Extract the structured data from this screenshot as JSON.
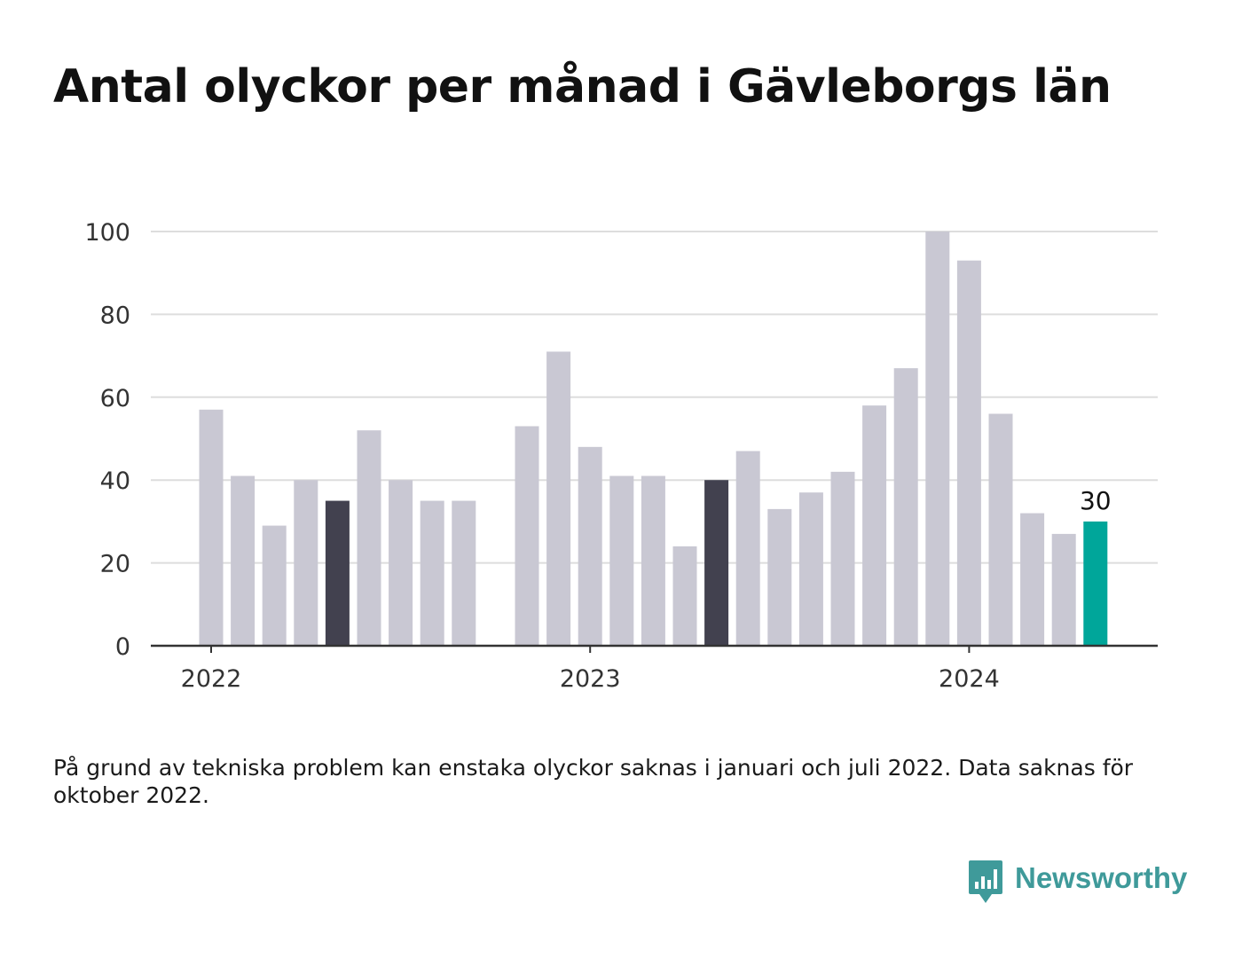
{
  "title": "Antal olyckor per månad i Gävleborgs län",
  "note": "På grund av tekniska problem kan enstaka olyckor saknas i januari och juli 2022. Data saknas för oktober 2022.",
  "brand": {
    "name": "Newsworthy",
    "color": "#3f9a9a",
    "icon": "bar-chart-speech-bubble-icon"
  },
  "chart_data": {
    "type": "bar",
    "ylim": [
      0,
      100
    ],
    "yticks": [
      "0",
      "20",
      "40",
      "60",
      "80",
      "100"
    ],
    "xticks": [
      {
        "label": "2022",
        "at": "2022-01"
      },
      {
        "label": "2023",
        "at": "2023-01"
      },
      {
        "label": "2024",
        "at": "2024-01"
      }
    ],
    "grid": true,
    "colors": {
      "default": "#c9c8d3",
      "highlight_dark": "#42414f",
      "latest": "#00a69a",
      "grid": "#dddddd",
      "axis": "#333333"
    },
    "categories": [
      "2022-01",
      "2022-02",
      "2022-03",
      "2022-04",
      "2022-05",
      "2022-06",
      "2022-07",
      "2022-08",
      "2022-09",
      "2022-10",
      "2022-11",
      "2022-12",
      "2023-01",
      "2023-02",
      "2023-03",
      "2023-04",
      "2023-05",
      "2023-06",
      "2023-07",
      "2023-08",
      "2023-09",
      "2023-10",
      "2023-11",
      "2023-12",
      "2024-01",
      "2024-02",
      "2024-03",
      "2024-04",
      "2024-05"
    ],
    "values": [
      57,
      41,
      29,
      40,
      35,
      52,
      40,
      35,
      35,
      null,
      53,
      71,
      48,
      41,
      41,
      24,
      40,
      47,
      33,
      37,
      42,
      58,
      67,
      100,
      93,
      56,
      32,
      27,
      30
    ],
    "highlight_dark": [
      "2022-05",
      "2023-05"
    ],
    "latest": "2024-05",
    "data_labels": [
      {
        "category": "2024-05",
        "label": "30"
      }
    ]
  }
}
